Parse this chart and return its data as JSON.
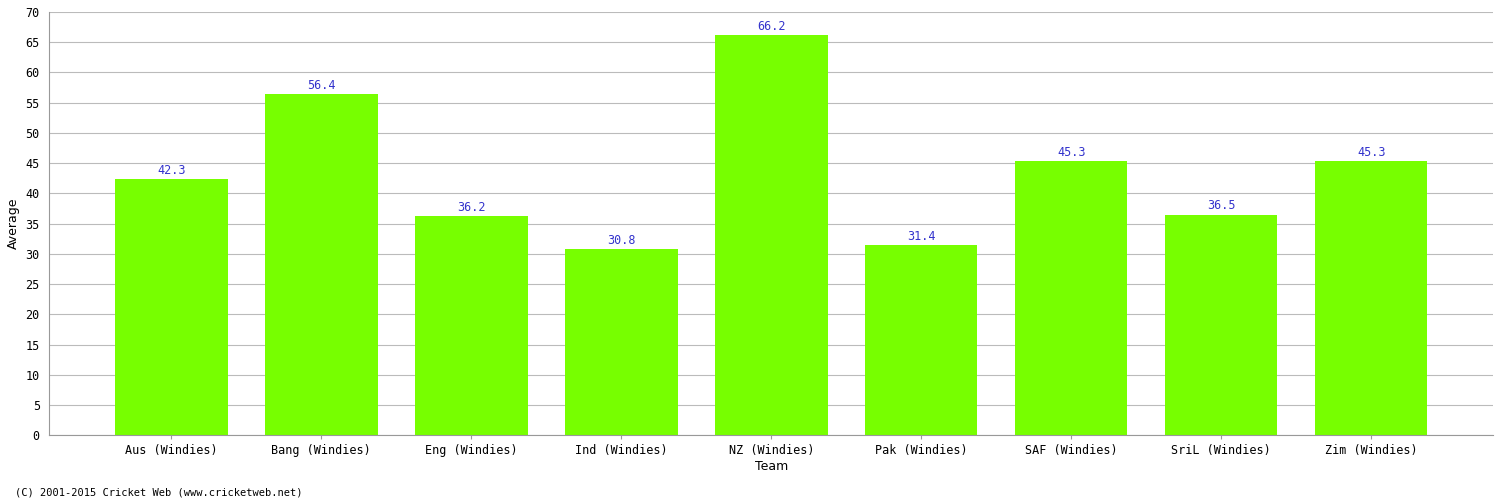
{
  "categories": [
    "Aus (Windies)",
    "Bang (Windies)",
    "Eng (Windies)",
    "Ind (Windies)",
    "NZ (Windies)",
    "Pak (Windies)",
    "SAF (Windies)",
    "SriL (Windies)",
    "Zim (Windies)"
  ],
  "values": [
    42.3,
    56.4,
    36.2,
    30.8,
    66.2,
    31.4,
    45.3,
    36.5,
    45.3
  ],
  "bar_color": "#77ff00",
  "bar_edge_color": "#77ff00",
  "label_color": "#3333cc",
  "ylabel": "Average",
  "xlabel": "Team",
  "ylim": [
    0,
    70
  ],
  "yticks": [
    0,
    5,
    10,
    15,
    20,
    25,
    30,
    35,
    40,
    45,
    50,
    55,
    60,
    65,
    70
  ],
  "grid_color": "#bbbbbb",
  "bg_color": "#ffffff",
  "plot_bg_color": "#ffffff",
  "footnote": "(C) 2001-2015 Cricket Web (www.cricketweb.net)",
  "label_fontsize": 8.5,
  "tick_fontsize": 8.5,
  "axis_label_fontsize": 9,
  "bar_width": 0.75
}
